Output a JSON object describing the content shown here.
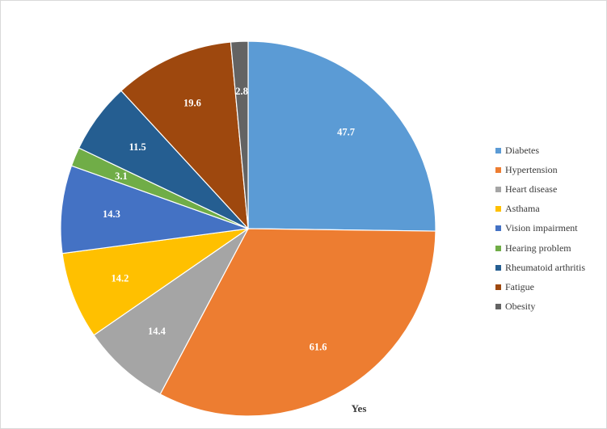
{
  "chart_data": {
    "type": "pie",
    "title": "",
    "xlabel": "Yes",
    "categories": [
      "Diabetes",
      "Hypertension",
      "Heart disease",
      "Asthama",
      "Vision impairment",
      "Hearing problem",
      "Rheumatoid arthritis",
      "Fatigue",
      "Obesity"
    ],
    "values": [
      47.7,
      61.6,
      14.4,
      14.2,
      14.3,
      3.1,
      11.5,
      19.6,
      2.8
    ],
    "labels": [
      "47.7",
      "61.6",
      "14.4",
      "14.2",
      "14.3",
      "3.1",
      "11.5",
      "19.6",
      "2.8"
    ],
    "colors": [
      "#5b9bd5",
      "#ed7d31",
      "#a5a5a5",
      "#ffc000",
      "#4472c4",
      "#70ad47",
      "#255e91",
      "#9e480e",
      "#636363"
    ],
    "legend_position": "right"
  }
}
